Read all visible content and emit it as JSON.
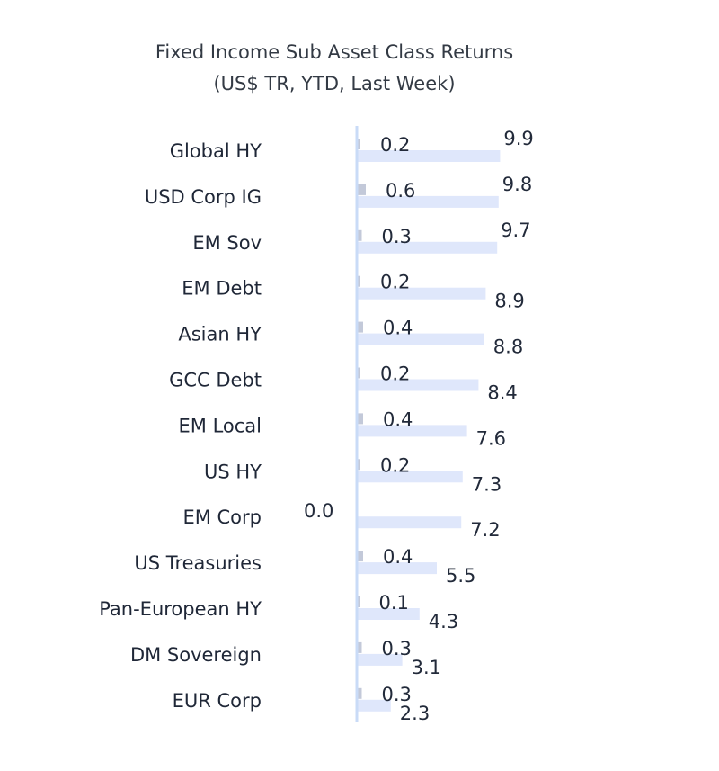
{
  "chart_data": {
    "type": "bar",
    "orientation": "horizontal",
    "title": "Fixed Income Sub Asset Class Returns",
    "subtitle": "(US$ TR, YTD, Last Week)",
    "categories": [
      "Global HY",
      "USD Corp IG",
      "EM Sov",
      "EM Debt",
      "Asian HY",
      "GCC Debt",
      "EM Local",
      "US HY",
      "EM Corp",
      "US Treasuries",
      "Pan-European HY",
      "DM Sovereign",
      "EUR Corp"
    ],
    "series": [
      {
        "key": "ytd",
        "values": [
          9.9,
          9.8,
          9.7,
          8.9,
          8.8,
          8.4,
          7.6,
          7.3,
          7.2,
          5.5,
          4.3,
          3.1,
          2.3
        ],
        "color": "#dfe7fb"
      },
      {
        "key": "last_week",
        "values": [
          0.2,
          0.6,
          0.3,
          0.2,
          0.4,
          0.2,
          0.4,
          0.2,
          0.0,
          0.4,
          0.1,
          0.3,
          0.3
        ],
        "color": "#c3c9d9"
      }
    ],
    "value_labels_ytd": [
      "9.9",
      "9.8",
      "9.7",
      "8.9",
      "8.8",
      "8.4",
      "7.6",
      "7.3",
      "7.2",
      "5.5",
      "4.3",
      "3.1",
      "2.3"
    ],
    "value_labels_last_week": [
      "0.2",
      "0.6",
      "0.3",
      "0.2",
      "0.4",
      "0.2",
      "0.4",
      "0.2",
      "0.0",
      "0.4",
      "0.1",
      "0.3",
      "0.3"
    ],
    "axis_color": "#c9dbf7",
    "grid": false,
    "legend": "none"
  }
}
